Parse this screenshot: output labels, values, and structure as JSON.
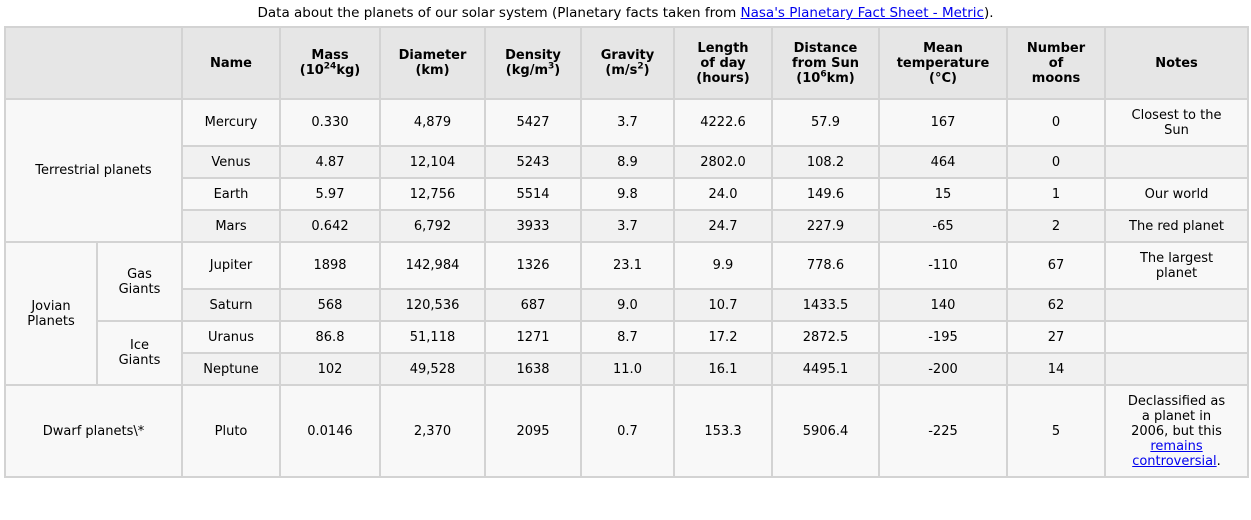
{
  "caption": {
    "prefix": "Data about the planets of our solar system (Planetary facts taken from ",
    "link_text": "Nasa's Planetary Fact Sheet - Metric",
    "suffix": ")."
  },
  "headers": {
    "name": "Name",
    "mass_a": "Mass",
    "mass_b1": "(10",
    "mass_b_sup": "24",
    "mass_b2": "kg)",
    "diameter_a": "Diameter",
    "diameter_b": "(km)",
    "density_a": "Density",
    "density_b1": "(kg/m",
    "density_b_sup": "3",
    "density_b2": ")",
    "gravity_a": "Gravity",
    "gravity_b1": "(m/s",
    "gravity_b_sup": "2",
    "gravity_b2": ")",
    "length_a": "Length",
    "length_b": "of day",
    "length_c": "(hours)",
    "distance_a": "Distance",
    "distance_b": "from Sun",
    "distance_c1": "(10",
    "distance_c_sup": "6",
    "distance_c2": "km)",
    "temp_a": "Mean",
    "temp_b": "temperature",
    "temp_c": "(°C)",
    "moons_a": "Number",
    "moons_b": "of",
    "moons_c": "moons",
    "notes": "Notes"
  },
  "groups": {
    "terrestrial": "Terrestrial planets",
    "jovian_a": "Jovian",
    "jovian_b": "Planets",
    "gas_a": "Gas",
    "gas_b": "Giants",
    "ice_a": "Ice",
    "ice_b": "Giants",
    "dwarf": "Dwarf planets\\*"
  },
  "planets": [
    {
      "name": "Mercury",
      "mass": "0.330",
      "diameter": "4,879",
      "density": "5427",
      "gravity": "3.7",
      "length": "4222.6",
      "distance": "57.9",
      "temp": "167",
      "moons": "0",
      "note_a": "Closest to the",
      "note_b": "Sun"
    },
    {
      "name": "Venus",
      "mass": "4.87",
      "diameter": "12,104",
      "density": "5243",
      "gravity": "8.9",
      "length": "2802.0",
      "distance": "108.2",
      "temp": "464",
      "moons": "0"
    },
    {
      "name": "Earth",
      "mass": "5.97",
      "diameter": "12,756",
      "density": "5514",
      "gravity": "9.8",
      "length": "24.0",
      "distance": "149.6",
      "temp": "15",
      "moons": "1",
      "note_a": "Our world"
    },
    {
      "name": "Mars",
      "mass": "0.642",
      "diameter": "6,792",
      "density": "3933",
      "gravity": "3.7",
      "length": "24.7",
      "distance": "227.9",
      "temp": "-65",
      "moons": "2",
      "note_a": "The red planet"
    },
    {
      "name": "Jupiter",
      "mass": "1898",
      "diameter": "142,984",
      "density": "1326",
      "gravity": "23.1",
      "length": "9.9",
      "distance": "778.6",
      "temp": "-110",
      "moons": "67",
      "note_a": "The largest",
      "note_b": "planet"
    },
    {
      "name": "Saturn",
      "mass": "568",
      "diameter": "120,536",
      "density": "687",
      "gravity": "9.0",
      "length": "10.7",
      "distance": "1433.5",
      "temp": "140",
      "moons": "62"
    },
    {
      "name": "Uranus",
      "mass": "86.8",
      "diameter": "51,118",
      "density": "1271",
      "gravity": "8.7",
      "length": "17.2",
      "distance": "2872.5",
      "temp": "-195",
      "moons": "27"
    },
    {
      "name": "Neptune",
      "mass": "102",
      "diameter": "49,528",
      "density": "1638",
      "gravity": "11.0",
      "length": "16.1",
      "distance": "4495.1",
      "temp": "-200",
      "moons": "14"
    },
    {
      "name": "Pluto",
      "mass": "0.0146",
      "diameter": "2,370",
      "density": "2095",
      "gravity": "0.7",
      "length": "153.3",
      "distance": "5906.4",
      "temp": "-225",
      "moons": "5",
      "note_a": "Declassified as",
      "note_b": "a planet in",
      "note_c": "2006, but this",
      "note_link_a": "remains",
      "note_link_b": "controversial",
      "note_end": "."
    }
  ]
}
